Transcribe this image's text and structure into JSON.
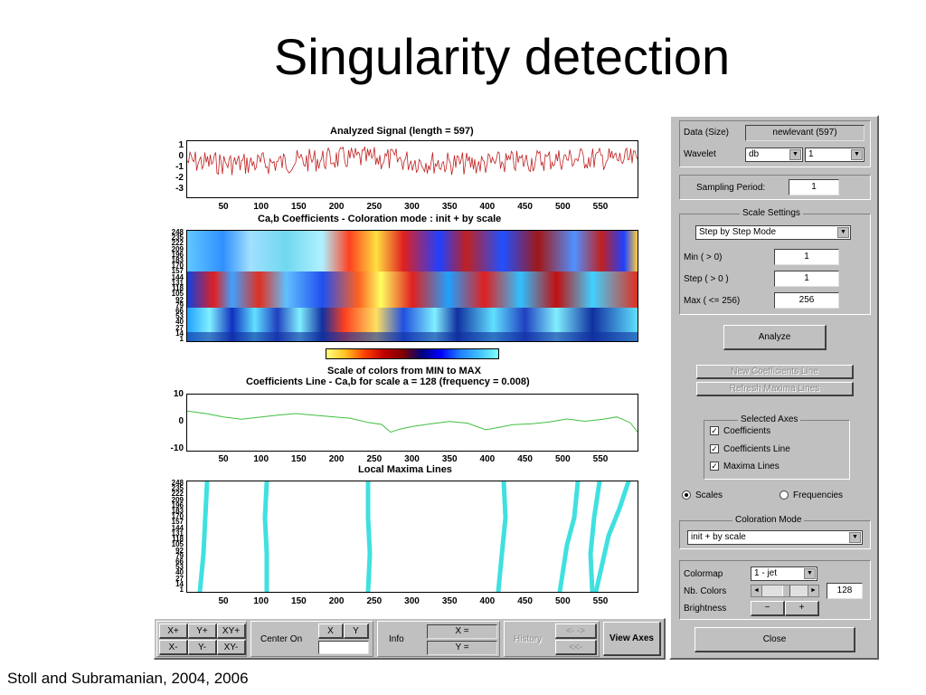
{
  "slide": {
    "title": "Singularity detection",
    "credit": "Stoll and Subramanian, 2004, 2006"
  },
  "plots": {
    "signal": {
      "title": "Analyzed Signal  (length = 597)",
      "yticks": [
        "1",
        "0",
        "-1",
        "-2",
        "-3"
      ],
      "xticks": [
        "50",
        "100",
        "150",
        "200",
        "250",
        "300",
        "350",
        "400",
        "450",
        "500",
        "550"
      ],
      "color": "#c02020"
    },
    "coeffs": {
      "title": "Ca,b Coefficients  - Coloration mode : init + by scale",
      "yticks": [
        "248",
        "235",
        "222",
        "209",
        "196",
        "183",
        "170",
        "157",
        "144",
        "131",
        "118",
        "105",
        "92",
        "79",
        "66",
        "53",
        "40",
        "27",
        "14",
        "1"
      ]
    },
    "colorbar": {
      "caption": "Scale of colors from MIN to MAX"
    },
    "coefline": {
      "title": "Coefficients Line - Ca,b   for scale a = 128  (frequency =   0.008)",
      "yticks": [
        "10",
        "0",
        "-10"
      ],
      "xticks": [
        "50",
        "100",
        "150",
        "200",
        "250",
        "300",
        "350",
        "400",
        "450",
        "500",
        "550"
      ],
      "color": "#40c040"
    },
    "maxima": {
      "title": "Local Maxima Lines",
      "yticks": [
        "248",
        "235",
        "222",
        "209",
        "196",
        "183",
        "170",
        "157",
        "144",
        "131",
        "118",
        "105",
        "92",
        "79",
        "66",
        "53",
        "40",
        "27",
        "14",
        "1"
      ],
      "xticks": [
        "50",
        "100",
        "150",
        "200",
        "250",
        "300",
        "350",
        "400",
        "450",
        "500",
        "550"
      ],
      "color": "#40e0e0"
    }
  },
  "panel": {
    "data_label": "Data  (Size)",
    "data_value": "newlevant  (597)",
    "wavelet_label": "Wavelet",
    "wavelet_family": "db",
    "wavelet_order": "1",
    "sampling_label": "Sampling Period:",
    "sampling_value": "1",
    "scale_settings": {
      "title": "Scale Settings",
      "mode": "Step by Step Mode",
      "min_label": "Min  ( > 0)",
      "min_value": "1",
      "step_label": "Step ( > 0 )",
      "step_value": "1",
      "max_label": "Max  ( <= 256)",
      "max_value": "256"
    },
    "analyze": "Analyze",
    "new_coef_line": "New Coefficients Line",
    "refresh_maxima": "Refresh Maxima Lines",
    "selected_axes": {
      "title": "Selected Axes",
      "items": [
        {
          "label": "Coefficients",
          "checked": "✓"
        },
        {
          "label": "Coefficients Line",
          "checked": "✓"
        },
        {
          "label": "Maxima Lines",
          "checked": "✓"
        }
      ]
    },
    "radio_scales": "Scales",
    "radio_frequencies": "Frequencies",
    "coloration": {
      "title": "Coloration Mode",
      "value": "init + by scale"
    },
    "colormap_label": "Colormap",
    "colormap_value": "1 - jet",
    "nbcolors_label": "Nb. Colors",
    "nbcolors_value": "128",
    "brightness_label": "Brightness",
    "minus": "−",
    "plus": "+",
    "close": "Close"
  },
  "toolbar": {
    "xplus": "X+",
    "yplus": "Y+",
    "xyplus": "XY+",
    "xminus": "X-",
    "yminus": "Y-",
    "xyminus": "XY-",
    "center_on": "Center On",
    "x": "X",
    "y": "Y",
    "info": "Info",
    "x_eq": "X =",
    "y_eq": "Y =",
    "history": "History",
    "hist_fwd": "<-  ->",
    "hist_back": "<<-",
    "view_axes": "View Axes"
  }
}
